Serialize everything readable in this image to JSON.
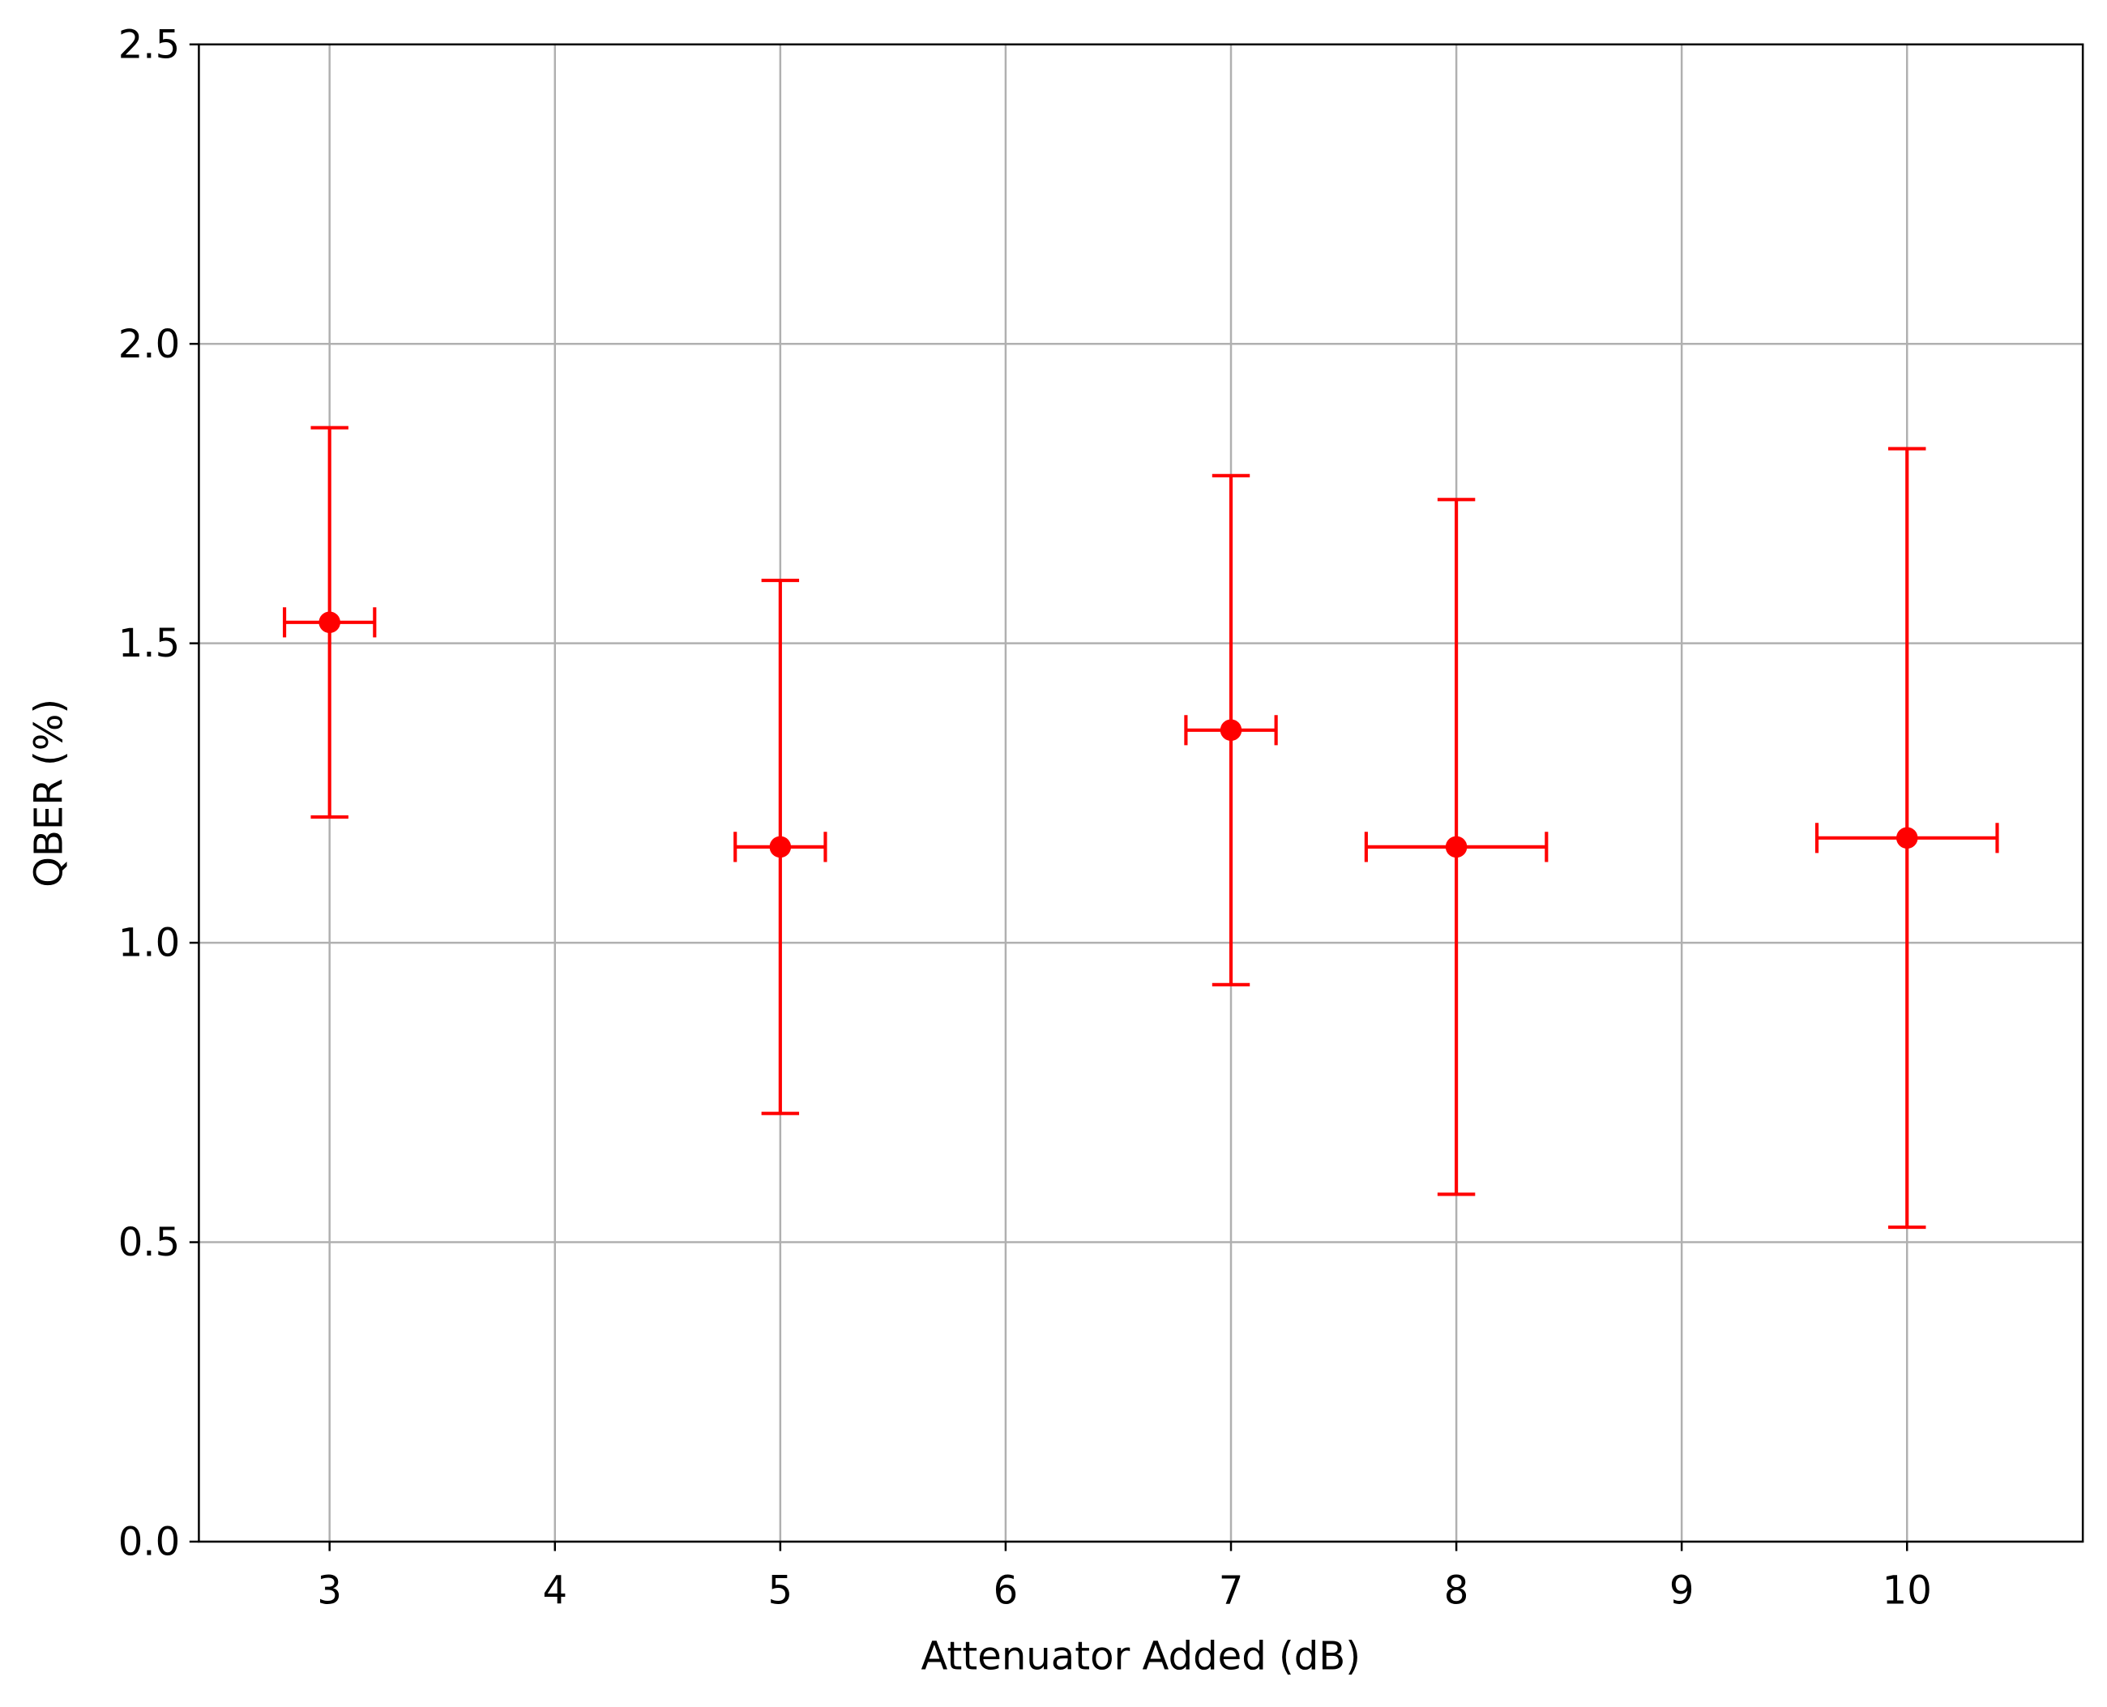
{
  "chart_data": {
    "type": "errorbar",
    "x_label": "Attenuator Added (dB)",
    "y_label": "QBER (%)",
    "series": [
      {
        "color": "#ff0000",
        "x": [
          3,
          5,
          7,
          8,
          10
        ],
        "values": [
          1.535,
          1.16,
          1.355,
          1.16,
          1.175
        ],
        "yerr": [
          0.325,
          0.445,
          0.425,
          0.58,
          0.65
        ],
        "xerr": [
          0.2,
          0.2,
          0.2,
          0.4,
          0.4
        ]
      }
    ],
    "xlim": [
      2.42,
      10.78
    ],
    "ylim": [
      0,
      2.5
    ],
    "xticks": [
      3,
      4,
      5,
      6,
      7,
      8,
      9,
      10
    ],
    "yticks": [
      {
        "value": 0,
        "label": "0.0"
      },
      {
        "value": 0.5,
        "label": "0.5"
      },
      {
        "value": 1,
        "label": "1.0"
      },
      {
        "value": 1.5,
        "label": "1.5"
      },
      {
        "value": 2,
        "label": "2.0"
      },
      {
        "value": 2.5,
        "label": "2.5"
      }
    ],
    "grid": true
  }
}
